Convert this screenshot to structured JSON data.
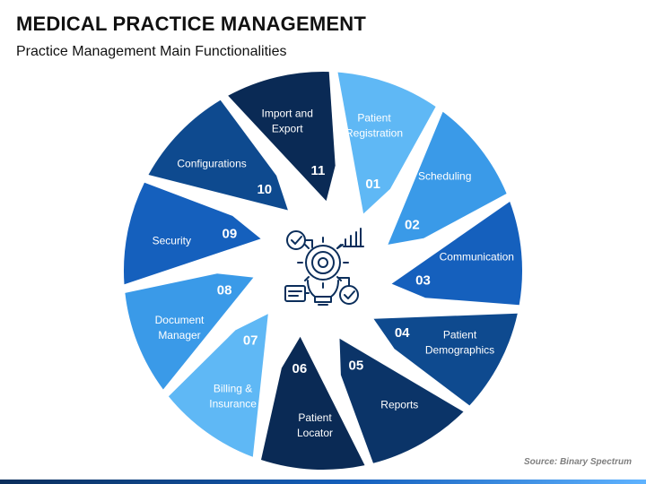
{
  "title": "MEDICAL PRACTICE MANAGEMENT",
  "subtitle": "Practice Management Main Functionalities",
  "source": "Source: Binary Spectrum",
  "segments": [
    {
      "number": "01",
      "line1": "Patient",
      "line2": "Registration",
      "color": "#5fb8f5"
    },
    {
      "number": "02",
      "line1": "Scheduling",
      "line2": "",
      "color": "#3a9ae8"
    },
    {
      "number": "03",
      "line1": "Communication",
      "line2": "",
      "color": "#1560bd"
    },
    {
      "number": "04",
      "line1": "Patient",
      "line2": "Demographics",
      "color": "#0e4a8f"
    },
    {
      "number": "05",
      "line1": "Reports",
      "line2": "",
      "color": "#0b3468"
    },
    {
      "number": "06",
      "line1": "Patient",
      "line2": "Locator",
      "color": "#0a2a55"
    },
    {
      "number": "07",
      "line1": "Billing &",
      "line2": "Insurance",
      "color": "#5fb8f5"
    },
    {
      "number": "08",
      "line1": "Document",
      "line2": "Manager",
      "color": "#3a9ae8"
    },
    {
      "number": "09",
      "line1": "Security",
      "line2": "",
      "color": "#1560bd"
    },
    {
      "number": "10",
      "line1": "Configurations",
      "line2": "",
      "color": "#0e4a8f"
    },
    {
      "number": "11",
      "line1": "Import and",
      "line2": "Export",
      "color": "#0a2a55"
    }
  ],
  "center_icon": "medical-innovation-bulb-icon"
}
